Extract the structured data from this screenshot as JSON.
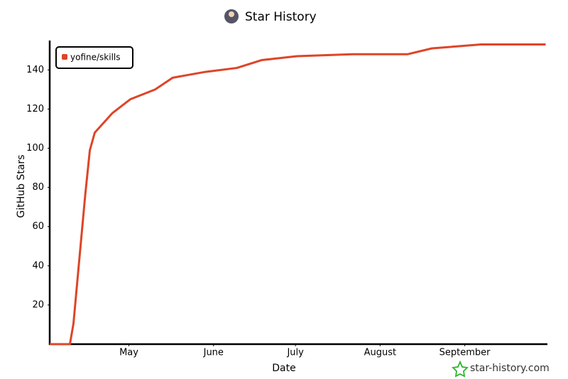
{
  "chart_data": {
    "type": "line",
    "title": "Star History",
    "x_label": "Date",
    "y_label": "GitHub Stars",
    "x": [
      1,
      8.4,
      9.7,
      11.5,
      14,
      15.7,
      17.5,
      24,
      30.5,
      39.6,
      46,
      58,
      69.5,
      78.6,
      91.6,
      112,
      120,
      132,
      141,
      159,
      182.6
    ],
    "series": [
      {
        "name": "yofine/skills",
        "color": "#dd4528",
        "values": [
          0,
          0,
          10.5,
          38,
          76,
          99,
          108,
          118,
          125,
          130,
          136,
          139,
          141,
          145,
          147,
          148,
          148,
          148,
          151,
          153,
          153
        ]
      }
    ],
    "xlim": [
      1,
      183
    ],
    "xticks": [
      {
        "value": 30,
        "label": "May"
      },
      {
        "value": 61,
        "label": "June"
      },
      {
        "value": 91,
        "label": "July"
      },
      {
        "value": 122,
        "label": "August"
      },
      {
        "value": 153,
        "label": "September"
      }
    ],
    "ylim": [
      0,
      155
    ],
    "yticks": [
      20,
      40,
      60,
      80,
      100,
      120,
      140
    ],
    "legend": "top-left",
    "watermark": "star-history.com"
  }
}
